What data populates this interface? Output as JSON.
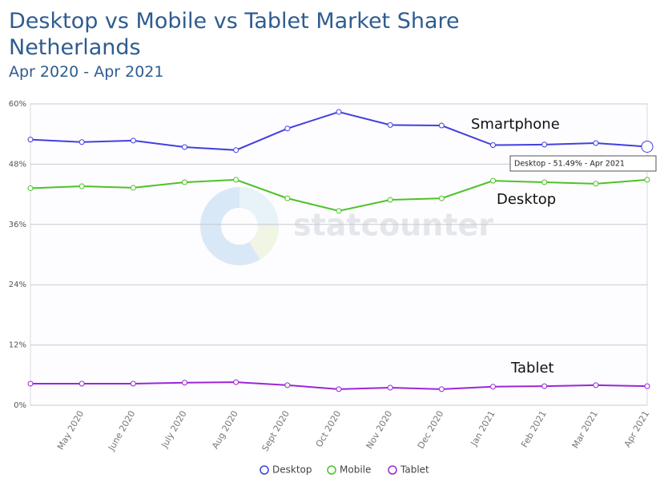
{
  "chart_data": {
    "type": "line",
    "title": "Desktop vs Mobile vs Tablet Market Share Netherlands",
    "subtitle": "Apr 2020 - Apr 2021",
    "categories": [
      null,
      "May 2020",
      "June 2020",
      "July 2020",
      "Aug 2020",
      "Sept 2020",
      "Oct 2020",
      "Nov 2020",
      "Dec 2020",
      "Jan 2021",
      "Feb 2021",
      "Mar 2021",
      "Apr 2021"
    ],
    "series": [
      {
        "name": "Desktop",
        "color": "#4040e0",
        "values": [
          52.9,
          52.4,
          52.7,
          51.4,
          50.8,
          55.1,
          58.4,
          55.8,
          55.7,
          51.8,
          51.9,
          52.2,
          51.49
        ]
      },
      {
        "name": "Mobile",
        "color": "#4ec228",
        "values": [
          43.2,
          43.6,
          43.3,
          44.4,
          44.9,
          41.2,
          38.7,
          40.9,
          41.2,
          44.7,
          44.4,
          44.1,
          44.9
        ]
      },
      {
        "name": "Tablet",
        "color": "#9b26d6",
        "values": [
          4.3,
          4.3,
          4.3,
          4.5,
          4.6,
          4.0,
          3.2,
          3.5,
          3.2,
          3.7,
          3.8,
          4.0,
          3.8
        ]
      }
    ],
    "ylim": [
      0,
      60
    ],
    "yticks": [
      {
        "value": 0,
        "label": "0%"
      },
      {
        "value": 12,
        "label": "12%"
      },
      {
        "value": 24,
        "label": "24%"
      },
      {
        "value": 36,
        "label": "36%"
      },
      {
        "value": 48,
        "label": "48%"
      },
      {
        "value": 60,
        "label": "60%"
      }
    ],
    "grid": true,
    "legend": "bottom",
    "annotations": [
      "Smartphone",
      "Desktop",
      "Tablet"
    ],
    "tooltip": "Desktop - 51.49% - Apr 2021",
    "watermark": "statcounter"
  }
}
